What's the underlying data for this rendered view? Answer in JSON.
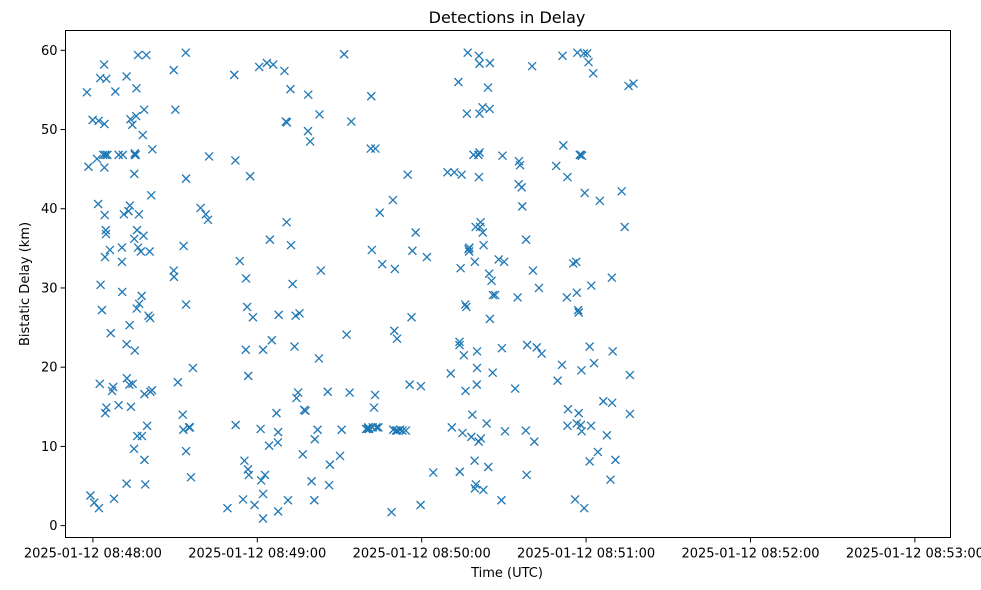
{
  "chart_data": {
    "type": "scatter",
    "title": "Detections in Delay",
    "xlabel": "Time (UTC)",
    "ylabel": "Bistatic Delay (km)",
    "x_unit": "seconds",
    "x_origin_label": "2025-01-12 08:48:00",
    "xlim": [
      -10,
      313
    ],
    "ylim": [
      -1.5,
      62.5
    ],
    "x_ticks": [
      {
        "value": 0,
        "label": "2025-01-12 08:48:00"
      },
      {
        "value": 60,
        "label": "2025-01-12 08:49:00"
      },
      {
        "value": 120,
        "label": "2025-01-12 08:50:00"
      },
      {
        "value": 180,
        "label": "2025-01-12 08:51:00"
      },
      {
        "value": 240,
        "label": "2025-01-12 08:52:00"
      },
      {
        "value": 300,
        "label": "2025-01-12 08:53:00"
      }
    ],
    "y_ticks": [
      0,
      10,
      20,
      30,
      40,
      50,
      60
    ],
    "grid": false,
    "marker": "x",
    "color": "#1f77b4",
    "points": [
      [
        -2.2,
        54.7
      ],
      [
        -1.6,
        45.3
      ],
      [
        -0.9,
        3.8
      ],
      [
        -0.1,
        51.2
      ],
      [
        0.5,
        2.9
      ],
      [
        1.5,
        46.3
      ],
      [
        1.9,
        40.6
      ],
      [
        2.1,
        51.1
      ],
      [
        2.2,
        2.2
      ],
      [
        2.5,
        17.9
      ],
      [
        2.7,
        56.5
      ],
      [
        2.8,
        30.4
      ],
      [
        3.3,
        27.2
      ],
      [
        3.8,
        46.8
      ],
      [
        4.1,
        58.2
      ],
      [
        4.2,
        50.7
      ],
      [
        4.3,
        39.2
      ],
      [
        4.2,
        45.2
      ],
      [
        4.4,
        33.9
      ],
      [
        4.5,
        14.2
      ],
      [
        4.6,
        46.8
      ],
      [
        4.7,
        37.3
      ],
      [
        4.8,
        36.8
      ],
      [
        4.9,
        56.4
      ],
      [
        4.9,
        14.9
      ],
      [
        5.3,
        46.8
      ],
      [
        6.2,
        34.8
      ],
      [
        6.5,
        24.3
      ],
      [
        7.0,
        17.0
      ],
      [
        7.4,
        17.5
      ],
      [
        7.7,
        3.4
      ],
      [
        8.2,
        54.8
      ],
      [
        9.4,
        15.2
      ],
      [
        9.4,
        46.8
      ],
      [
        10.6,
        35.1
      ],
      [
        10.6,
        33.3
      ],
      [
        10.7,
        29.5
      ],
      [
        10.9,
        46.8
      ],
      [
        11.3,
        39.3
      ],
      [
        12.3,
        56.7
      ],
      [
        12.3,
        5.3
      ],
      [
        12.3,
        22.9
      ],
      [
        12.4,
        18.6
      ],
      [
        13.0,
        39.7
      ],
      [
        13.3,
        17.8
      ],
      [
        13.4,
        25.3
      ],
      [
        13.5,
        40.4
      ],
      [
        13.7,
        51.3
      ],
      [
        13.9,
        15.0
      ],
      [
        14.4,
        50.6
      ],
      [
        14.5,
        17.9
      ],
      [
        15.0,
        9.7
      ],
      [
        15.1,
        44.4
      ],
      [
        15.1,
        36.2
      ],
      [
        15.3,
        47.0
      ],
      [
        15.3,
        22.1
      ],
      [
        15.3,
        46.8
      ],
      [
        15.6,
        46.8
      ],
      [
        15.8,
        51.7
      ],
      [
        15.9,
        55.2
      ],
      [
        16.0,
        27.4
      ],
      [
        16.1,
        37.3
      ],
      [
        16.2,
        11.3
      ],
      [
        16.5,
        59.4
      ],
      [
        16.5,
        35.1
      ],
      [
        16.8,
        39.3
      ],
      [
        16.9,
        28.0
      ],
      [
        17.5,
        34.6
      ],
      [
        17.8,
        29.0
      ],
      [
        17.9,
        11.3
      ],
      [
        18.2,
        49.3
      ],
      [
        18.5,
        36.6
      ],
      [
        18.7,
        52.5
      ],
      [
        18.8,
        16.6
      ],
      [
        18.8,
        8.3
      ],
      [
        19.1,
        5.2
      ],
      [
        19.5,
        59.4
      ],
      [
        19.8,
        12.6
      ],
      [
        20.3,
        26.5
      ],
      [
        20.7,
        34.6
      ],
      [
        20.9,
        26.2
      ],
      [
        21.0,
        16.9
      ],
      [
        21.3,
        41.7
      ],
      [
        21.6,
        17.1
      ],
      [
        21.7,
        47.5
      ],
      [
        29.5,
        57.5
      ],
      [
        29.5,
        32.2
      ],
      [
        29.6,
        31.4
      ],
      [
        30.1,
        52.5
      ],
      [
        31.0,
        18.1
      ],
      [
        32.8,
        14.0
      ],
      [
        33.0,
        12.1
      ],
      [
        33.1,
        35.3
      ],
      [
        34.0,
        27.9
      ],
      [
        33.9,
        59.7
      ],
      [
        34.0,
        43.8
      ],
      [
        34.0,
        9.4
      ],
      [
        35.1,
        12.4
      ],
      [
        35.4,
        12.4
      ],
      [
        35.8,
        6.1
      ],
      [
        36.5,
        19.9
      ],
      [
        39.3,
        40.1
      ],
      [
        41.2,
        39.3
      ],
      [
        42.0,
        38.6
      ],
      [
        42.4,
        46.6
      ],
      [
        49.1,
        2.2
      ],
      [
        51.6,
        56.9
      ],
      [
        52.1,
        12.7
      ],
      [
        52.0,
        46.1
      ],
      [
        53.6,
        33.4
      ],
      [
        54.8,
        3.3
      ],
      [
        55.3,
        8.2
      ],
      [
        55.8,
        22.2
      ],
      [
        55.9,
        31.2
      ],
      [
        56.3,
        27.6
      ],
      [
        56.6,
        7.1
      ],
      [
        56.7,
        18.9
      ],
      [
        56.9,
        6.4
      ],
      [
        57.4,
        44.1
      ],
      [
        58.4,
        26.3
      ],
      [
        59.0,
        2.6
      ],
      [
        60.7,
        57.9
      ],
      [
        61.2,
        12.2
      ],
      [
        61.4,
        5.7
      ],
      [
        62.1,
        22.2
      ],
      [
        62.1,
        4.0
      ],
      [
        62.1,
        0.9
      ],
      [
        62.8,
        6.4
      ],
      [
        63.5,
        58.4
      ],
      [
        64.3,
        10.1
      ],
      [
        64.6,
        36.1
      ],
      [
        65.3,
        23.4
      ],
      [
        65.8,
        58.2
      ],
      [
        67.0,
        14.2
      ],
      [
        67.5,
        10.5
      ],
      [
        67.6,
        1.8
      ],
      [
        67.6,
        11.8
      ],
      [
        67.8,
        26.6
      ],
      [
        69.9,
        57.4
      ],
      [
        70.4,
        51.0
      ],
      [
        70.7,
        38.3
      ],
      [
        70.8,
        50.9
      ],
      [
        71.2,
        3.2
      ],
      [
        72.1,
        55.1
      ],
      [
        72.3,
        35.4
      ],
      [
        72.9,
        30.5
      ],
      [
        73.6,
        22.6
      ],
      [
        74.0,
        26.5
      ],
      [
        74.3,
        16.1
      ],
      [
        74.9,
        16.8
      ],
      [
        75.4,
        26.8
      ],
      [
        76.6,
        9.0
      ],
      [
        77.1,
        14.6
      ],
      [
        77.6,
        14.5
      ],
      [
        78.5,
        49.8
      ],
      [
        78.6,
        54.4
      ],
      [
        79.3,
        48.5
      ],
      [
        79.8,
        5.6
      ],
      [
        80.8,
        3.2
      ],
      [
        81.0,
        10.9
      ],
      [
        82.0,
        12.1
      ],
      [
        82.5,
        21.1
      ],
      [
        82.7,
        51.9
      ],
      [
        83.2,
        32.2
      ],
      [
        85.7,
        16.9
      ],
      [
        86.2,
        5.1
      ],
      [
        86.5,
        7.7
      ],
      [
        90.2,
        8.8
      ],
      [
        90.8,
        12.1
      ],
      [
        91.7,
        59.5
      ],
      [
        92.6,
        24.1
      ],
      [
        93.7,
        16.8
      ],
      [
        94.3,
        51.0
      ],
      [
        99.7,
        12.2
      ],
      [
        100.3,
        12.2
      ],
      [
        100.5,
        12.4
      ],
      [
        100.8,
        12.2
      ],
      [
        101.4,
        47.6
      ],
      [
        101.6,
        54.2
      ],
      [
        101.8,
        34.8
      ],
      [
        102.1,
        12.4
      ],
      [
        102.6,
        14.9
      ],
      [
        103.0,
        16.5
      ],
      [
        103.1,
        47.6
      ],
      [
        103.5,
        12.4
      ],
      [
        104.2,
        12.4
      ],
      [
        104.7,
        39.5
      ],
      [
        105.6,
        33.0
      ],
      [
        109.0,
        1.7
      ],
      [
        109.5,
        41.1
      ],
      [
        109.6,
        12.1
      ],
      [
        110.0,
        24.6
      ],
      [
        110.2,
        32.4
      ],
      [
        110.6,
        12.0
      ],
      [
        111.0,
        23.6
      ],
      [
        111.1,
        12.0
      ],
      [
        112.1,
        12.1
      ],
      [
        113.0,
        12.0
      ],
      [
        114.2,
        12.0
      ],
      [
        114.9,
        44.3
      ],
      [
        115.6,
        17.8
      ],
      [
        116.3,
        26.3
      ],
      [
        116.6,
        34.7
      ],
      [
        117.8,
        37.0
      ],
      [
        119.6,
        2.6
      ],
      [
        119.7,
        17.6
      ],
      [
        121.9,
        33.9
      ],
      [
        124.2,
        6.7
      ],
      [
        129.4,
        44.6
      ],
      [
        130.6,
        19.2
      ],
      [
        131.0,
        12.4
      ],
      [
        131.9,
        44.6
      ],
      [
        133.4,
        56.0
      ],
      [
        133.8,
        23.2
      ],
      [
        133.8,
        22.8
      ],
      [
        133.9,
        6.8
      ],
      [
        134.2,
        32.5
      ],
      [
        134.6,
        44.3
      ],
      [
        134.9,
        11.7
      ],
      [
        135.4,
        21.5
      ],
      [
        135.9,
        27.9
      ],
      [
        136.0,
        17.0
      ],
      [
        136.3,
        27.6
      ],
      [
        136.5,
        52.0
      ],
      [
        136.8,
        59.7
      ],
      [
        137.1,
        34.9
      ],
      [
        137.3,
        34.6
      ],
      [
        137.4,
        35.1
      ],
      [
        138.1,
        11.2
      ],
      [
        138.5,
        14.0
      ],
      [
        138.9,
        46.8
      ],
      [
        139.3,
        8.2
      ],
      [
        139.4,
        4.7
      ],
      [
        139.4,
        33.3
      ],
      [
        139.7,
        37.7
      ],
      [
        139.8,
        5.2
      ],
      [
        140.1,
        17.8
      ],
      [
        140.2,
        19.9
      ],
      [
        140.2,
        22.0
      ],
      [
        140.7,
        46.8
      ],
      [
        140.8,
        10.6
      ],
      [
        140.9,
        44.0
      ],
      [
        141.1,
        47.1
      ],
      [
        140.9,
        59.3
      ],
      [
        141.1,
        58.3
      ],
      [
        141.1,
        52.0
      ],
      [
        141.3,
        37.7
      ],
      [
        141.5,
        38.3
      ],
      [
        141.6,
        11.0
      ],
      [
        142.2,
        52.8
      ],
      [
        142.3,
        37.0
      ],
      [
        142.5,
        4.5
      ],
      [
        142.6,
        35.4
      ],
      [
        143.7,
        12.9
      ],
      [
        144.2,
        55.3
      ],
      [
        144.3,
        7.4
      ],
      [
        144.6,
        31.8
      ],
      [
        144.8,
        52.6
      ],
      [
        144.9,
        58.4
      ],
      [
        144.9,
        26.1
      ],
      [
        145.5,
        30.9
      ],
      [
        145.9,
        19.3
      ],
      [
        146.0,
        29.1
      ],
      [
        146.8,
        29.1
      ],
      [
        148.1,
        33.6
      ],
      [
        149.1,
        3.2
      ],
      [
        149.3,
        22.4
      ],
      [
        149.5,
        46.7
      ],
      [
        150.1,
        33.3
      ],
      [
        150.4,
        11.9
      ],
      [
        154.1,
        17.3
      ],
      [
        155.0,
        28.8
      ],
      [
        155.4,
        43.1
      ],
      [
        155.5,
        46.0
      ],
      [
        155.9,
        45.5
      ],
      [
        156.5,
        42.7
      ],
      [
        156.7,
        40.3
      ],
      [
        158.0,
        12.0
      ],
      [
        158.1,
        36.1
      ],
      [
        158.3,
        6.4
      ],
      [
        158.5,
        22.8
      ],
      [
        160.3,
        58.0
      ],
      [
        160.6,
        32.2
      ],
      [
        161.1,
        10.6
      ],
      [
        162.0,
        22.5
      ],
      [
        162.8,
        30.0
      ],
      [
        163.8,
        21.7
      ],
      [
        169.1,
        45.4
      ],
      [
        169.6,
        18.3
      ],
      [
        171.2,
        20.3
      ],
      [
        171.4,
        59.3
      ],
      [
        171.7,
        48.0
      ],
      [
        173.0,
        28.8
      ],
      [
        173.2,
        44.0
      ],
      [
        173.2,
        12.6
      ],
      [
        173.4,
        14.7
      ],
      [
        175.3,
        33.1
      ],
      [
        176.0,
        3.3
      ],
      [
        176.4,
        33.3
      ],
      [
        176.6,
        12.9
      ],
      [
        176.6,
        29.4
      ],
      [
        176.8,
        59.7
      ],
      [
        177.1,
        27.2
      ],
      [
        177.3,
        26.9
      ],
      [
        177.3,
        14.2
      ],
      [
        177.7,
        46.8
      ],
      [
        178.1,
        12.7
      ],
      [
        178.1,
        46.8
      ],
      [
        178.3,
        19.6
      ],
      [
        178.4,
        11.9
      ],
      [
        178.5,
        46.7
      ],
      [
        179.2,
        59.6
      ],
      [
        179.3,
        2.2
      ],
      [
        179.5,
        42.0
      ],
      [
        180.4,
        59.6
      ],
      [
        180.9,
        58.5
      ],
      [
        181.3,
        22.6
      ],
      [
        181.3,
        8.1
      ],
      [
        181.8,
        12.6
      ],
      [
        181.9,
        30.3
      ],
      [
        182.6,
        57.1
      ],
      [
        182.9,
        20.5
      ],
      [
        184.3,
        9.3
      ],
      [
        185.0,
        41.0
      ],
      [
        186.3,
        15.7
      ],
      [
        187.6,
        11.4
      ],
      [
        188.9,
        5.8
      ],
      [
        189.4,
        31.3
      ],
      [
        189.5,
        15.5
      ],
      [
        189.7,
        22.0
      ],
      [
        190.7,
        8.3
      ],
      [
        193.0,
        42.2
      ],
      [
        194.1,
        37.7
      ],
      [
        195.5,
        55.5
      ],
      [
        196.0,
        19.0
      ],
      [
        196.0,
        14.1
      ],
      [
        197.3,
        55.8
      ]
    ]
  }
}
